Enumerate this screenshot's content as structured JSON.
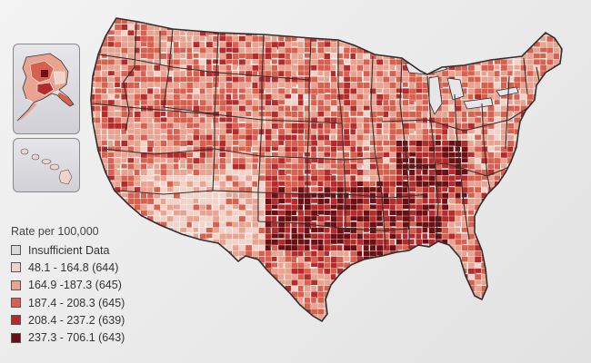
{
  "legend": {
    "title": "Rate per 100,000",
    "items": [
      {
        "label": "Insufficient Data",
        "color": "#d9dadd"
      },
      {
        "label": "48.1 - 164.8 (644)",
        "color": "#f2d3c9"
      },
      {
        "label": "164.9 -187.3 (645)",
        "color": "#e9a391"
      },
      {
        "label": "187.4 - 208.3 (645)",
        "color": "#d8604f"
      },
      {
        "label": "208.4 - 237.2 (639)",
        "color": "#b52b2b"
      },
      {
        "label": "237.3 - 706.1 (643)",
        "color": "#6b0f12"
      }
    ]
  },
  "map": {
    "state_border_color": "#3a3a3a",
    "county_border_color": "#ffffff"
  }
}
